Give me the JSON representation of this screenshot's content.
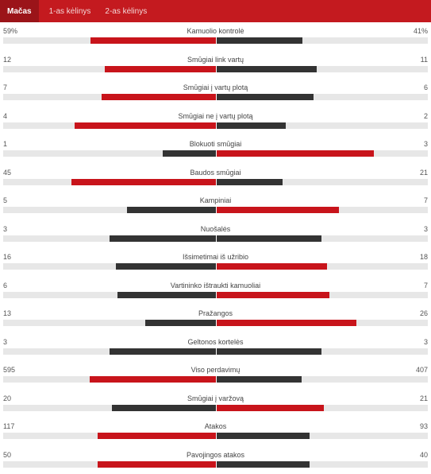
{
  "tabs": [
    "Mačas",
    "1-as kėlinys",
    "2-as kėlinys"
  ],
  "active_tab": 0,
  "colors": {
    "winner": "#c8141b",
    "loser": "#333333",
    "track": "#e7e7e7",
    "tabbar": "#c41a1f"
  },
  "stats": [
    {
      "name": "Kamuolio kontrolė",
      "left": "59%",
      "right": "41%",
      "left_frac": 0.59,
      "right_frac": 0.41
    },
    {
      "name": "Smūgiai link vartų",
      "left": "12",
      "right": "11",
      "left_frac": 0.522,
      "right_frac": 0.478
    },
    {
      "name": "Smūgiai į vartų plotą",
      "left": "7",
      "right": "6",
      "left_frac": 0.538,
      "right_frac": 0.462
    },
    {
      "name": "Smūgiai ne į vartų plotą",
      "left": "4",
      "right": "2",
      "left_frac": 0.667,
      "right_frac": 0.333
    },
    {
      "name": "Blokuoti smūgiai",
      "left": "1",
      "right": "3",
      "left_frac": 0.25,
      "right_frac": 0.75
    },
    {
      "name": "Baudos smūgiai",
      "left": "45",
      "right": "21",
      "left_frac": 0.682,
      "right_frac": 0.318
    },
    {
      "name": "Kampiniai",
      "left": "5",
      "right": "7",
      "left_frac": 0.417,
      "right_frac": 0.583
    },
    {
      "name": "Nuošalės",
      "left": "3",
      "right": "3",
      "left_frac": 0.5,
      "right_frac": 0.5
    },
    {
      "name": "Išsimetimai iš užribio",
      "left": "16",
      "right": "18",
      "left_frac": 0.471,
      "right_frac": 0.529
    },
    {
      "name": "Vartininko ištraukti kamuoliai",
      "left": "6",
      "right": "7",
      "left_frac": 0.462,
      "right_frac": 0.538
    },
    {
      "name": "Pražangos",
      "left": "13",
      "right": "26",
      "left_frac": 0.333,
      "right_frac": 0.667
    },
    {
      "name": "Geltonos kortelės",
      "left": "3",
      "right": "3",
      "left_frac": 0.5,
      "right_frac": 0.5
    },
    {
      "name": "Viso perdavimų",
      "left": "595",
      "right": "407",
      "left_frac": 0.594,
      "right_frac": 0.406
    },
    {
      "name": "Smūgiai į varžovą",
      "left": "20",
      "right": "21",
      "left_frac": 0.488,
      "right_frac": 0.512
    },
    {
      "name": "Atakos",
      "left": "117",
      "right": "93",
      "left_frac": 0.557,
      "right_frac": 0.443
    },
    {
      "name": "Pavojingos atakos",
      "left": "50",
      "right": "40",
      "left_frac": 0.556,
      "right_frac": 0.444
    }
  ]
}
